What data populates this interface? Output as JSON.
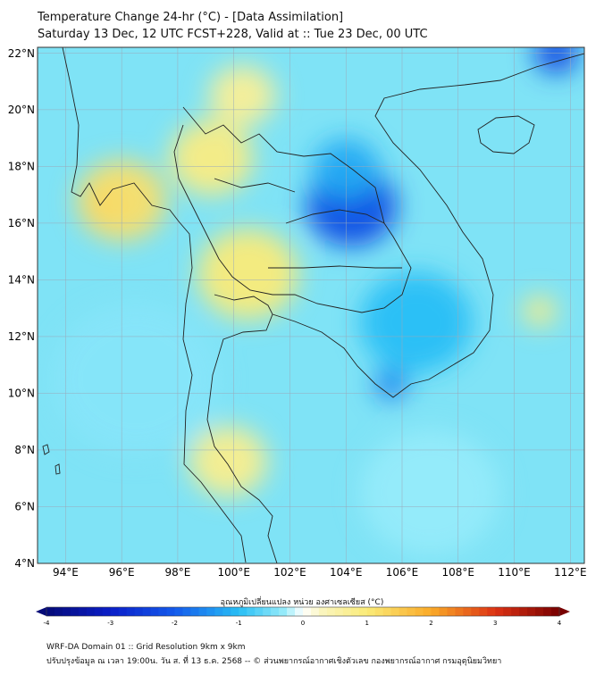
{
  "header": {
    "title_line1": "Temperature Change 24-hr (°C) - [Data Assimilation]",
    "title_line2": "Saturday 13 Dec, 12 UTC FCST+228, Valid at :: Tue 23 Dec, 00 UTC"
  },
  "map": {
    "lat_labels": [
      "22°N",
      "20°N",
      "18°N",
      "16°N",
      "14°N",
      "12°N",
      "10°N",
      "8°N",
      "6°N",
      "4°N"
    ],
    "lon_labels": [
      "94°E",
      "96°E",
      "98°E",
      "100°E",
      "102°E",
      "104°E",
      "106°E",
      "108°E",
      "110°E",
      "112°E"
    ],
    "lat_range": [
      4,
      22.2
    ],
    "lon_range": [
      93,
      112.5
    ],
    "anomalies": [
      {
        "lon": 95.3,
        "lat": 16.6,
        "value": 2.6,
        "spread": 0.7
      },
      {
        "lon": 96.0,
        "lat": 16.8,
        "value": 1.2,
        "spread": 1.6
      },
      {
        "lon": 99.2,
        "lat": 18.3,
        "value": 0.9,
        "spread": 1.5
      },
      {
        "lon": 100.5,
        "lat": 14.2,
        "value": 1.0,
        "spread": 1.8
      },
      {
        "lon": 99.8,
        "lat": 7.6,
        "value": 0.8,
        "spread": 1.4
      },
      {
        "lon": 100.3,
        "lat": 20.5,
        "value": 0.7,
        "spread": 1.2
      },
      {
        "lon": 110.9,
        "lat": 12.9,
        "value": 0.9,
        "spread": 0.6
      },
      {
        "lon": 104.2,
        "lat": 16.6,
        "value": -2.2,
        "spread": 1.6
      },
      {
        "lon": 104.0,
        "lat": 17.9,
        "value": -1.2,
        "spread": 1.2
      },
      {
        "lon": 106.5,
        "lat": 12.5,
        "value": -1.0,
        "spread": 2.0
      },
      {
        "lon": 105.6,
        "lat": 10.3,
        "value": -1.6,
        "spread": 0.6
      },
      {
        "lon": 111.5,
        "lat": 22.0,
        "value": -2.3,
        "spread": 0.8
      },
      {
        "lon": 96.5,
        "lat": 10.5,
        "value": -0.4,
        "spread": 3.0
      },
      {
        "lon": 107.0,
        "lat": 6.5,
        "value": -0.3,
        "spread": 2.5
      }
    ]
  },
  "colorbar": {
    "label": "อุณหภูมิเปลี่ยนแปลง หน่วย องศาเซลเซียส (°C)",
    "min": -4,
    "max": 4,
    "ticks": [
      "-4",
      "-3",
      "-2",
      "-1",
      "0",
      "1",
      "2",
      "3",
      "4"
    ]
  },
  "footer": {
    "line1": "WRF-DA Domain 01 :: Grid Resolution 9km x 9km",
    "line2": "ปรับปรุงข้อมูล ณ เวลา 19:00น. วัน ส. ที่ 13 ธ.ค. 2568 -- © ส่วนพยากรณ์อากาศเชิงตัวเลข กองพยากรณ์อากาศ กรมอุตุนิยมวิทยา"
  },
  "colors": {
    "neutral": "#ffffff",
    "cold_max": "#0a1a9e",
    "warm_max": "#7a0000",
    "borders": "#222222"
  }
}
